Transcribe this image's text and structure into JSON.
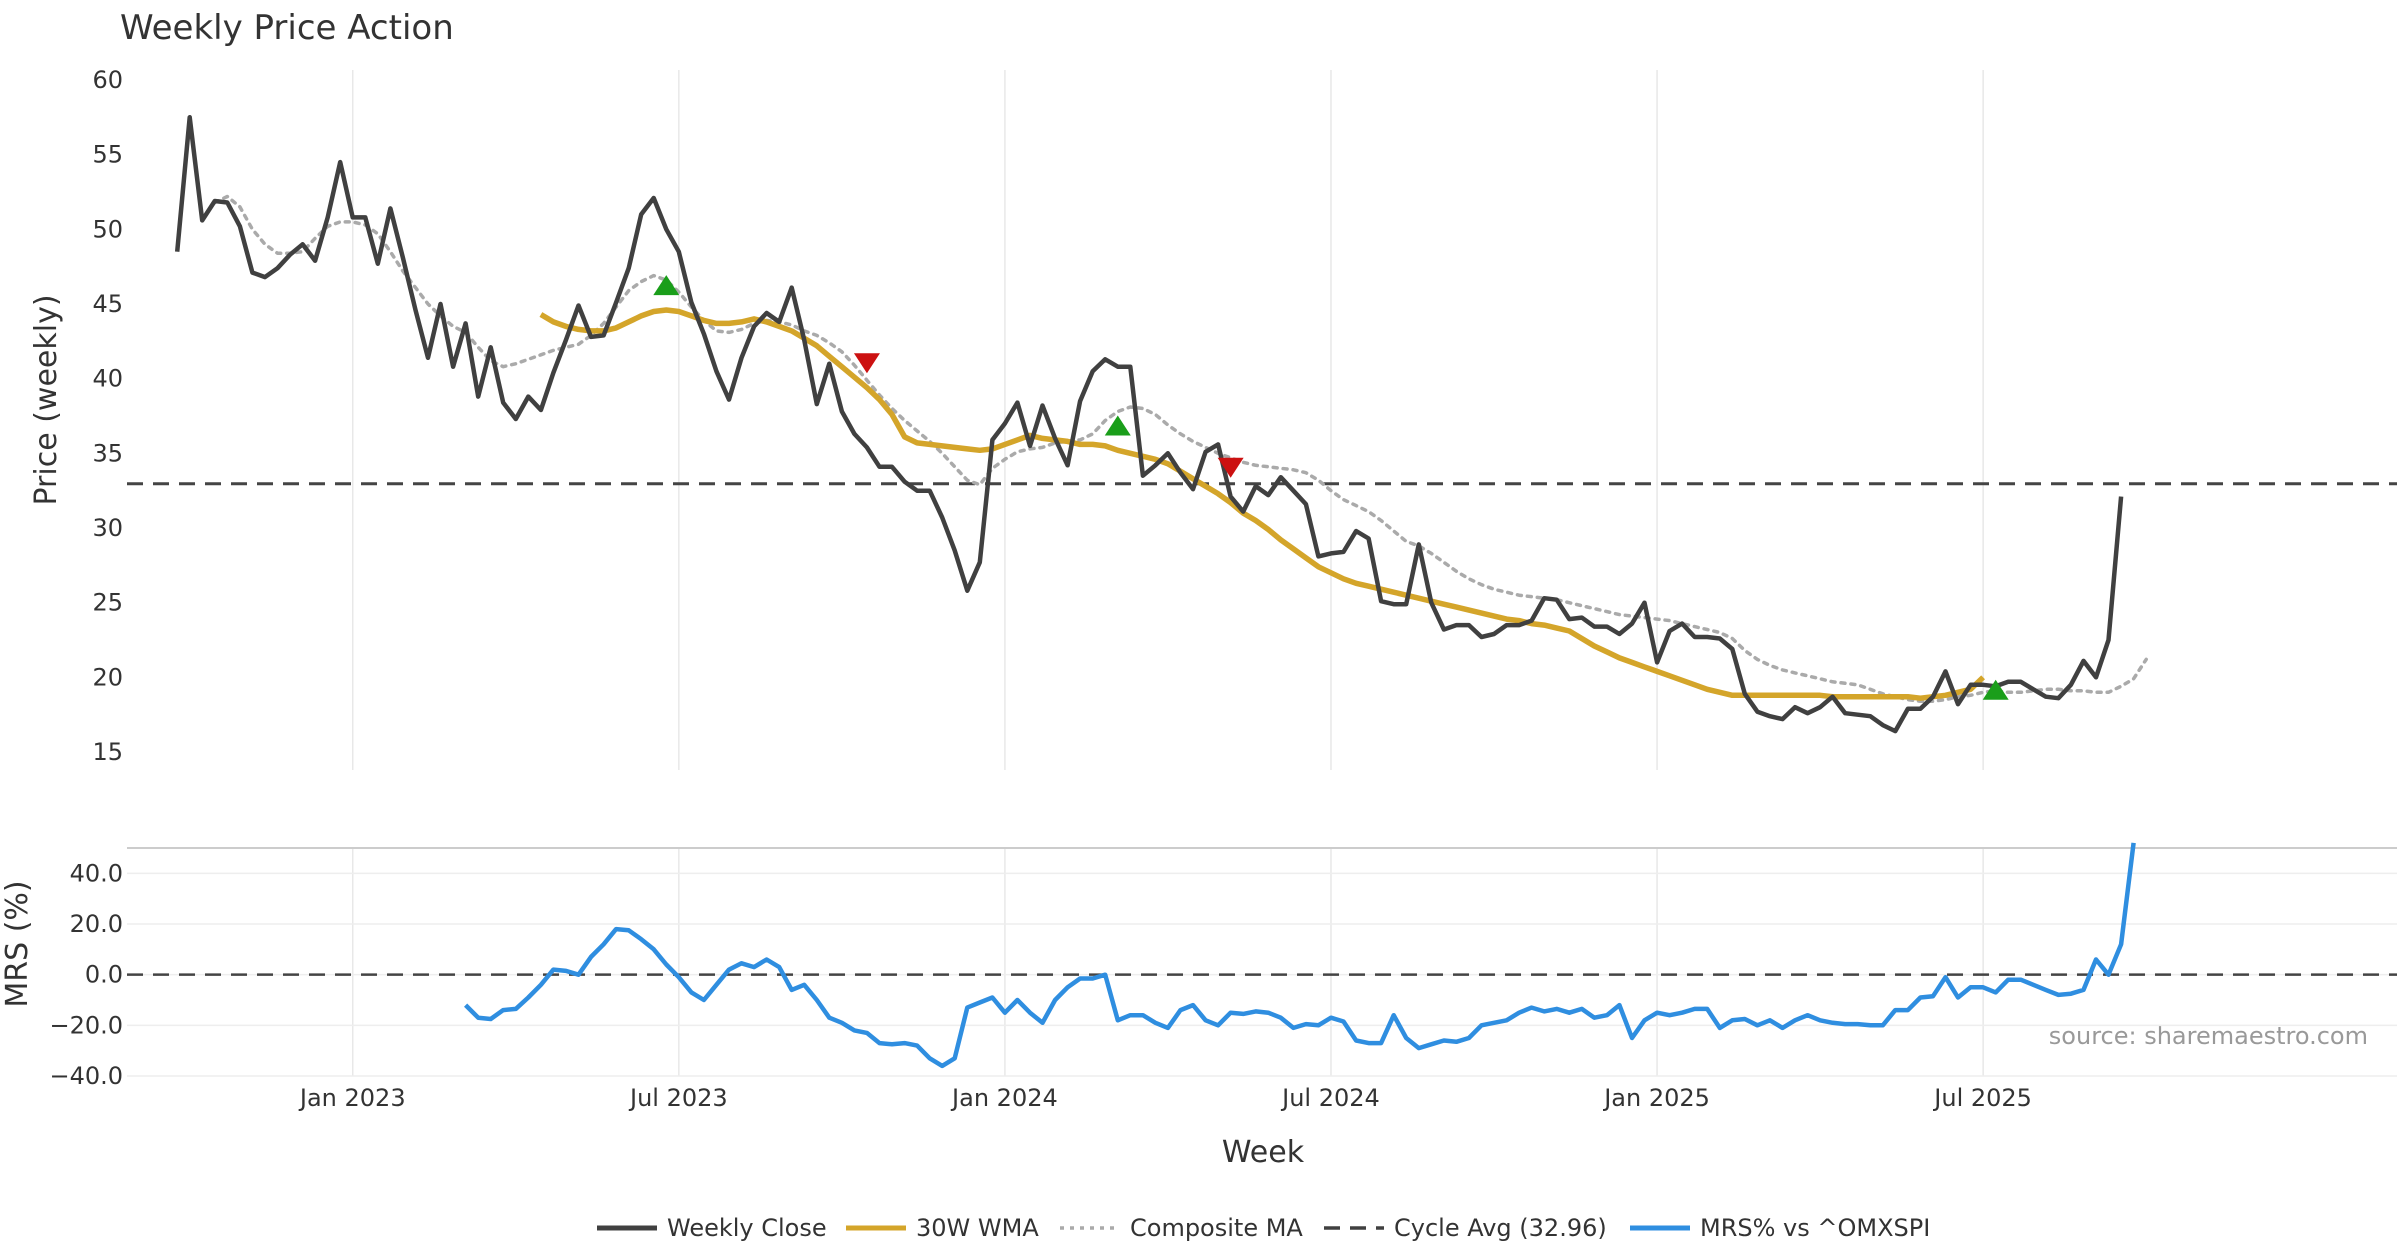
{
  "chart_data": [
    {
      "type": "line",
      "title": "Weekly Price Action",
      "xlabel": "",
      "ylabel": "Price (weekly)",
      "ylim": [
        15,
        60
      ],
      "yticks": [
        15,
        20,
        25,
        30,
        35,
        40,
        45,
        50,
        55,
        60
      ],
      "grid": true,
      "x_start_week": -6,
      "x_range": [
        -10,
        171
      ],
      "cycle_avg": 32.96,
      "series": [
        {
          "name": "Weekly Close",
          "color": "#404040",
          "start": 0,
          "values": [
            48.5,
            57.5,
            50.6,
            51.9,
            51.8,
            50.2,
            47.1,
            46.8,
            47.4,
            48.3,
            49.0,
            47.9,
            50.8,
            54.5,
            50.8,
            50.8,
            47.7,
            51.4,
            48.1,
            44.6,
            41.4,
            45.0,
            40.8,
            43.7,
            38.8,
            42.1,
            38.4,
            37.3,
            38.8,
            37.9,
            40.4,
            42.6,
            44.9,
            42.8,
            42.9,
            45.1,
            47.4,
            51.0,
            52.1,
            50.0,
            48.5,
            45.1,
            43.0,
            40.5,
            38.6,
            41.4,
            43.5,
            44.4,
            43.8,
            46.1,
            42.6,
            38.3,
            41.0,
            37.8,
            36.3,
            35.4,
            34.1,
            34.1,
            33.1,
            32.5,
            32.5,
            30.7,
            28.5,
            25.8,
            27.7,
            35.9,
            37.0,
            38.4,
            35.5,
            38.2,
            36.0,
            34.2,
            38.5,
            40.5,
            41.3,
            40.8,
            40.8,
            33.5,
            34.2,
            35.0,
            33.7,
            32.6,
            35.1,
            35.6,
            32.1,
            31.1,
            32.8,
            32.2,
            33.4,
            32.5,
            31.6,
            28.1,
            28.3,
            28.4,
            29.8,
            29.3,
            25.1,
            24.9,
            24.9,
            28.9,
            25.0,
            23.2,
            23.5,
            23.5,
            22.7,
            22.9,
            23.5,
            23.5,
            23.8,
            25.3,
            25.2,
            23.9,
            24.0,
            23.4,
            23.4,
            22.9,
            23.6,
            25.0,
            21.0,
            23.1,
            23.6,
            22.7,
            22.7,
            22.6,
            21.9,
            18.9,
            17.7,
            17.4,
            17.2,
            18.0,
            17.6,
            18.0,
            18.7,
            17.6,
            17.5,
            17.4,
            16.8,
            16.4,
            17.9,
            17.9,
            18.7,
            20.4,
            18.2,
            19.5,
            19.5,
            19.4,
            19.7,
            19.7,
            19.2,
            18.7,
            18.6,
            19.5,
            21.1,
            20.0,
            22.5,
            32.1
          ]
        },
        {
          "name": "30W WMA",
          "color": "#d4a52a",
          "start": 29,
          "values": [
            44.3,
            43.8,
            43.5,
            43.3,
            43.2,
            43.2,
            43.4,
            43.8,
            44.2,
            44.5,
            44.6,
            44.5,
            44.2,
            43.9,
            43.7,
            43.7,
            43.8,
            44.0,
            43.8,
            43.5,
            43.2,
            42.7,
            42.2,
            41.5,
            40.8,
            40.1,
            39.4,
            38.6,
            37.6,
            36.1,
            35.7,
            35.6,
            35.5,
            35.4,
            35.3,
            35.2,
            35.3,
            35.6,
            35.9,
            36.2,
            36.0,
            35.9,
            35.8,
            35.6,
            35.6,
            35.5,
            35.2,
            35.0,
            34.8,
            34.6,
            34.3,
            33.8,
            33.3,
            32.8,
            32.3,
            31.7,
            31.0,
            30.5,
            29.9,
            29.2,
            28.6,
            28.0,
            27.4,
            27.0,
            26.6,
            26.3,
            26.1,
            25.9,
            25.7,
            25.5,
            25.3,
            25.1,
            24.9,
            24.7,
            24.5,
            24.3,
            24.1,
            23.9,
            23.8,
            23.6,
            23.5,
            23.3,
            23.1,
            22.6,
            22.1,
            21.7,
            21.3,
            21.0,
            20.7,
            20.4,
            20.1,
            19.8,
            19.5,
            19.2,
            19.0,
            18.8,
            18.8,
            18.8,
            18.8,
            18.8,
            18.8,
            18.8,
            18.8,
            18.7,
            18.7,
            18.7,
            18.7,
            18.7,
            18.7,
            18.7,
            18.6,
            18.7,
            18.8,
            19.0,
            19.2,
            20.0
          ]
        },
        {
          "name": "Composite MA",
          "color": "#aaaaaa",
          "start": 3,
          "values": [
            51.8,
            52.2,
            51.5,
            50.0,
            49.0,
            48.4,
            48.4,
            48.5,
            49.4,
            50.2,
            50.5,
            50.5,
            50.3,
            49.7,
            48.5,
            47.2,
            46.1,
            45.0,
            44.2,
            43.5,
            43.1,
            42.1,
            41.2,
            40.8,
            41.0,
            41.3,
            41.6,
            41.9,
            42.1,
            42.3,
            42.9,
            43.7,
            44.8,
            45.9,
            46.5,
            46.9,
            46.6,
            45.8,
            44.8,
            43.9,
            43.2,
            43.1,
            43.3,
            43.7,
            43.9,
            43.8,
            43.6,
            43.2,
            42.9,
            42.4,
            41.8,
            40.9,
            39.9,
            38.9,
            38.0,
            37.2,
            36.5,
            35.8,
            35.0,
            34.1,
            33.2,
            32.9,
            34.0,
            34.6,
            35.1,
            35.3,
            35.4,
            35.7,
            35.8,
            35.9,
            36.3,
            37.2,
            37.8,
            38.1,
            38.0,
            37.6,
            36.9,
            36.3,
            35.8,
            35.4,
            35.0,
            34.7,
            34.4,
            34.2,
            34.1,
            34.0,
            33.9,
            33.7,
            33.2,
            32.5,
            31.9,
            31.5,
            31.1,
            30.5,
            29.8,
            29.1,
            28.8,
            28.3,
            27.7,
            27.1,
            26.6,
            26.2,
            25.9,
            25.7,
            25.5,
            25.4,
            25.3,
            25.2,
            25.0,
            24.8,
            24.6,
            24.4,
            24.2,
            24.1,
            24.0,
            23.9,
            23.8,
            23.6,
            23.4,
            23.2,
            23.0,
            22.6,
            21.8,
            21.2,
            20.8,
            20.5,
            20.3,
            20.1,
            19.9,
            19.7,
            19.6,
            19.5,
            19.2,
            18.9,
            18.7,
            18.5,
            18.4,
            18.4,
            18.5,
            18.7,
            18.8,
            19.0,
            19.1,
            19.0,
            19.0,
            19.1,
            19.2,
            19.2,
            19.1,
            19.1,
            19.0,
            19.0,
            19.4,
            19.9,
            21.2
          ]
        }
      ],
      "buy_signals": [
        {
          "week": 39,
          "price": 46.2
        },
        {
          "week": 75,
          "price": 36.8
        },
        {
          "week": 145,
          "price": 19.1
        }
      ],
      "sell_signals": [
        {
          "week": 55,
          "price": 41.1
        },
        {
          "week": 84,
          "price": 34.1
        }
      ]
    },
    {
      "type": "line",
      "title": "",
      "xlabel": "Week",
      "ylabel": "MRS (%)",
      "ylim": [
        -40,
        50
      ],
      "yticks": [
        -40,
        -20,
        0,
        20,
        40
      ],
      "ytick_labels": [
        "−40.0",
        "−20.0",
        "0.0",
        "20.0",
        "40.0"
      ],
      "xtick_labels": [
        "Jan 2023",
        "Jul 2023",
        "Jan 2024",
        "Jul 2024",
        "Jan 2025",
        "Jul 2025"
      ],
      "xtick_weeks": [
        8,
        34,
        60,
        86,
        112,
        138
      ],
      "zero_line": 0,
      "series": [
        {
          "name": "MRS% vs ^OMXSPI",
          "color": "#2f8ee0",
          "start": 23,
          "values": [
            -12,
            -17,
            -17.5,
            -14,
            -13.5,
            -9,
            -4,
            2,
            1.5,
            0,
            7,
            12,
            18,
            17.5,
            14,
            10,
            4,
            -1,
            -7,
            -10,
            -4,
            2,
            4.5,
            3,
            6,
            3,
            -6,
            -4,
            -10,
            -17,
            -19,
            -22,
            -23,
            -27,
            -27.5,
            -27,
            -28,
            -33,
            -36,
            -33,
            -13,
            -11,
            -9,
            -15,
            -10,
            -15,
            -19,
            -10,
            -5,
            -1.5,
            -1.5,
            0,
            -18,
            -16,
            -16,
            -19,
            -21,
            -14,
            -12,
            -18,
            -20,
            -15,
            -15.5,
            -14.5,
            -15,
            -17,
            -21,
            -19.5,
            -20,
            -17,
            -18.5,
            -26,
            -27,
            -27,
            -16,
            -25,
            -29,
            -27.5,
            -26,
            -26.5,
            -25,
            -20,
            -19,
            -18,
            -15,
            -13,
            -14.5,
            -13.5,
            -15,
            -13.5,
            -17,
            -16,
            -12,
            -25,
            -18,
            -15,
            -16,
            -15,
            -13.5,
            -13.5,
            -21,
            -18,
            -17.5,
            -20,
            -18,
            -21,
            -18,
            -16,
            -18,
            -19,
            -19.5,
            -19.5,
            -20,
            -20,
            -14,
            -14,
            -9,
            -8.5,
            -1,
            -9,
            -5,
            -5,
            -7,
            -2,
            -2,
            -4,
            -6,
            -8,
            -7.5,
            -6,
            6,
            0,
            12,
            52
          ]
        }
      ]
    }
  ],
  "source_note": "source: sharemaestro.com",
  "legend": [
    {
      "label": "Weekly Close",
      "color": "#404040",
      "style": "solid"
    },
    {
      "label": "30W WMA",
      "color": "#d4a52a",
      "style": "solid"
    },
    {
      "label": "Composite MA",
      "color": "#aaaaaa",
      "style": "dotted"
    },
    {
      "label": "Cycle Avg (32.96)",
      "color": "#404040",
      "style": "dashed"
    },
    {
      "label": "MRS% vs ^OMXSPI",
      "color": "#2f8ee0",
      "style": "solid"
    }
  ]
}
